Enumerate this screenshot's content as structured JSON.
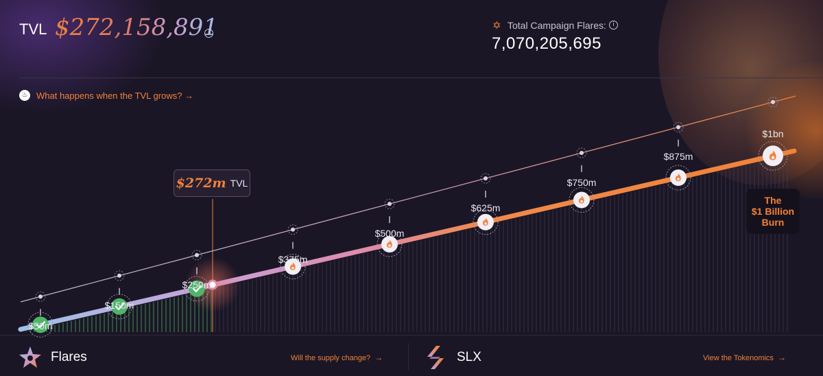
{
  "header": {
    "tvl_label": "TVL",
    "tvl_value": "$272,158,891",
    "total_flares_label": "Total Campaign Flares:",
    "total_flares_value": "7,070,205,695"
  },
  "grow_link": {
    "text": "What happens when the TVL grows? →"
  },
  "milestones": [
    {
      "label": "$50m",
      "status": "achieved"
    },
    {
      "label": "$150m",
      "status": "achieved"
    },
    {
      "label": "$250m",
      "status": "achieved"
    },
    {
      "label": "$375m",
      "status": "locked"
    },
    {
      "label": "$500m",
      "status": "locked"
    },
    {
      "label": "$625m",
      "status": "locked"
    },
    {
      "label": "$750m",
      "status": "locked"
    },
    {
      "label": "$875m",
      "status": "locked"
    },
    {
      "label": "$1bn",
      "status": "locked"
    }
  ],
  "current": {
    "value": "$272m",
    "suffix": "TVL"
  },
  "burn": {
    "lines": [
      "The",
      "$1 Billion",
      "Burn"
    ]
  },
  "footer": {
    "left_title": "Flares",
    "left_link": "Will the supply change?",
    "right_title": "SLX",
    "right_link": "View the Tokenomics"
  },
  "colors": {
    "accent": "#f0823a",
    "achieved": "#4fb56a",
    "background": "#1a1625"
  }
}
